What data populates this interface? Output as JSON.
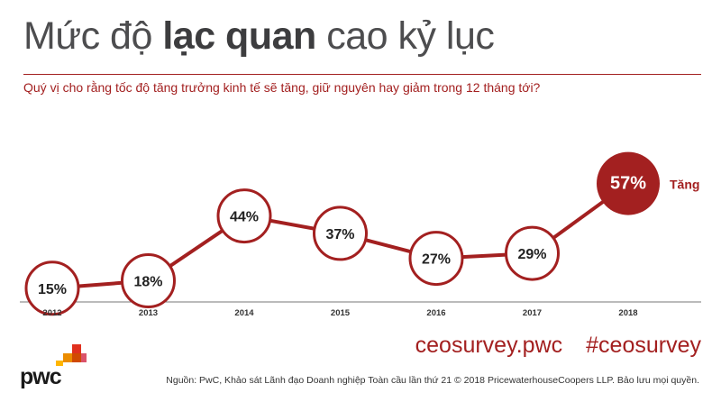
{
  "title": {
    "normal_1": "Mức độ ",
    "bold": "lạc quan",
    "normal_2": " cao kỷ lục"
  },
  "subtitle": "Quý vị cho rằng tốc độ tăng trưởng kinh tế sẽ tăng, giữ nguyên hay giảm trong 12 tháng tới?",
  "colors": {
    "accent": "#a32020",
    "text": "#4d4d4f",
    "axis": "#555555"
  },
  "chart_data": {
    "type": "line",
    "categories": [
      "2012",
      "2013",
      "2014",
      "2015",
      "2016",
      "2017",
      "2018"
    ],
    "series": [
      {
        "name": "Tăng",
        "values": [
          15,
          18,
          44,
          37,
          27,
          29,
          57
        ],
        "labels": [
          "15%",
          "18%",
          "44%",
          "37%",
          "27%",
          "29%",
          "57%"
        ]
      }
    ],
    "xlabel": "",
    "ylabel": "",
    "ylim": [
      0,
      60
    ],
    "grid": false,
    "highlight_index": 6,
    "annotation": "Tăng"
  },
  "footer": {
    "link_1": "ceosurvey.pwc",
    "link_2": "#ceosurvey",
    "source": "Nguồn: PwC, Khảo sát Lãnh đạo Doanh nghiệp Toàn cầu lần thứ 21 © 2018 PricewaterhouseCoopers LLP. Bảo lưu mọi quyền."
  },
  "logo": {
    "text": "pwc"
  }
}
